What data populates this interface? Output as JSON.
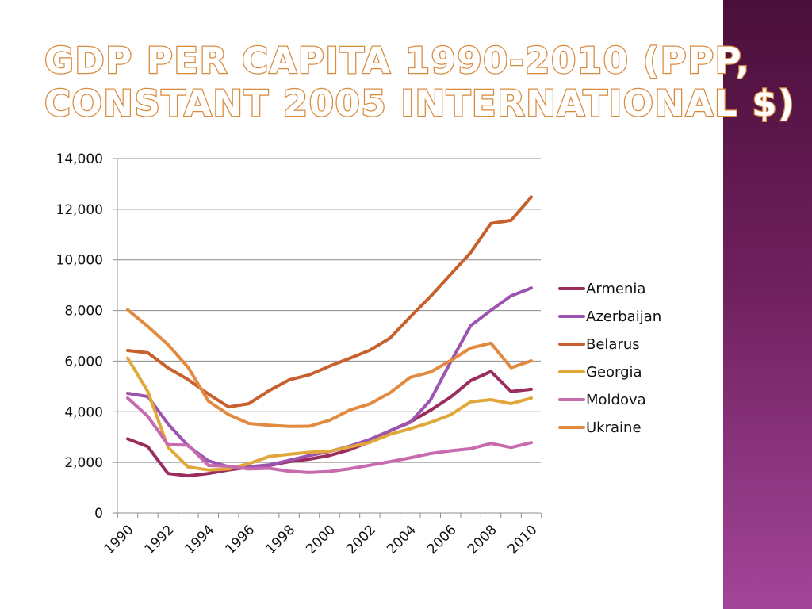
{
  "title": {
    "line1": "GDP per capita 1990-2010 (PPP,",
    "line2": "constant 2005 international $)"
  },
  "chart_data": {
    "type": "line",
    "title": "GDP per capita 1990-2010 (PPP, constant 2005 international $)",
    "xlabel": "",
    "ylabel": "",
    "ylim": [
      0,
      14000
    ],
    "yticks": [
      0,
      2000,
      4000,
      6000,
      8000,
      10000,
      12000,
      14000
    ],
    "ytick_labels": [
      "0",
      "2,000",
      "4,000",
      "6,000",
      "8,000",
      "10,000",
      "12,000",
      "14,000"
    ],
    "x": [
      1990,
      1991,
      1992,
      1993,
      1994,
      1995,
      1996,
      1997,
      1998,
      1999,
      2000,
      2001,
      2002,
      2003,
      2004,
      2005,
      2006,
      2007,
      2008,
      2009,
      2010
    ],
    "xtick_labels": [
      "1990",
      "1992",
      "1994",
      "1996",
      "1998",
      "2000",
      "2002",
      "2004",
      "2006",
      "2008",
      "2010"
    ],
    "grid": true,
    "legend_position": "right",
    "series": [
      {
        "name": "Armenia",
        "color": "#9b2d5c",
        "values": [
          2930,
          2620,
          1560,
          1470,
          1560,
          1700,
          1810,
          1880,
          2030,
          2130,
          2270,
          2500,
          2820,
          3250,
          3600,
          4060,
          4580,
          5230,
          5590,
          4800,
          4890
        ]
      },
      {
        "name": "Azerbaijan",
        "color": "#9b55b0",
        "values": [
          4730,
          4600,
          3520,
          2650,
          2060,
          1830,
          1830,
          1900,
          2080,
          2270,
          2430,
          2640,
          2910,
          3250,
          3580,
          4460,
          5960,
          7400,
          8010,
          8580,
          8890
        ]
      },
      {
        "name": "Belarus",
        "color": "#c8602d",
        "values": [
          6420,
          6330,
          5730,
          5270,
          4700,
          4190,
          4320,
          4830,
          5260,
          5460,
          5800,
          6110,
          6430,
          6910,
          7750,
          8550,
          9420,
          10290,
          11440,
          11560,
          12480
        ]
      },
      {
        "name": "Georgia",
        "color": "#e0a83a",
        "values": [
          6120,
          4800,
          2600,
          1820,
          1700,
          1740,
          1950,
          2230,
          2320,
          2400,
          2440,
          2610,
          2790,
          3110,
          3330,
          3580,
          3880,
          4390,
          4480,
          4320,
          4540
        ]
      },
      {
        "name": "Moldova",
        "color": "#c76aae",
        "values": [
          4540,
          3820,
          2700,
          2680,
          1880,
          1850,
          1740,
          1770,
          1650,
          1600,
          1640,
          1750,
          1890,
          2030,
          2180,
          2350,
          2460,
          2540,
          2750,
          2590,
          2780
        ]
      },
      {
        "name": "Ukraine",
        "color": "#e28a40",
        "values": [
          8030,
          7370,
          6650,
          5750,
          4420,
          3890,
          3540,
          3470,
          3420,
          3430,
          3660,
          4070,
          4310,
          4750,
          5360,
          5570,
          6020,
          6520,
          6710,
          5740,
          6010
        ]
      }
    ]
  }
}
